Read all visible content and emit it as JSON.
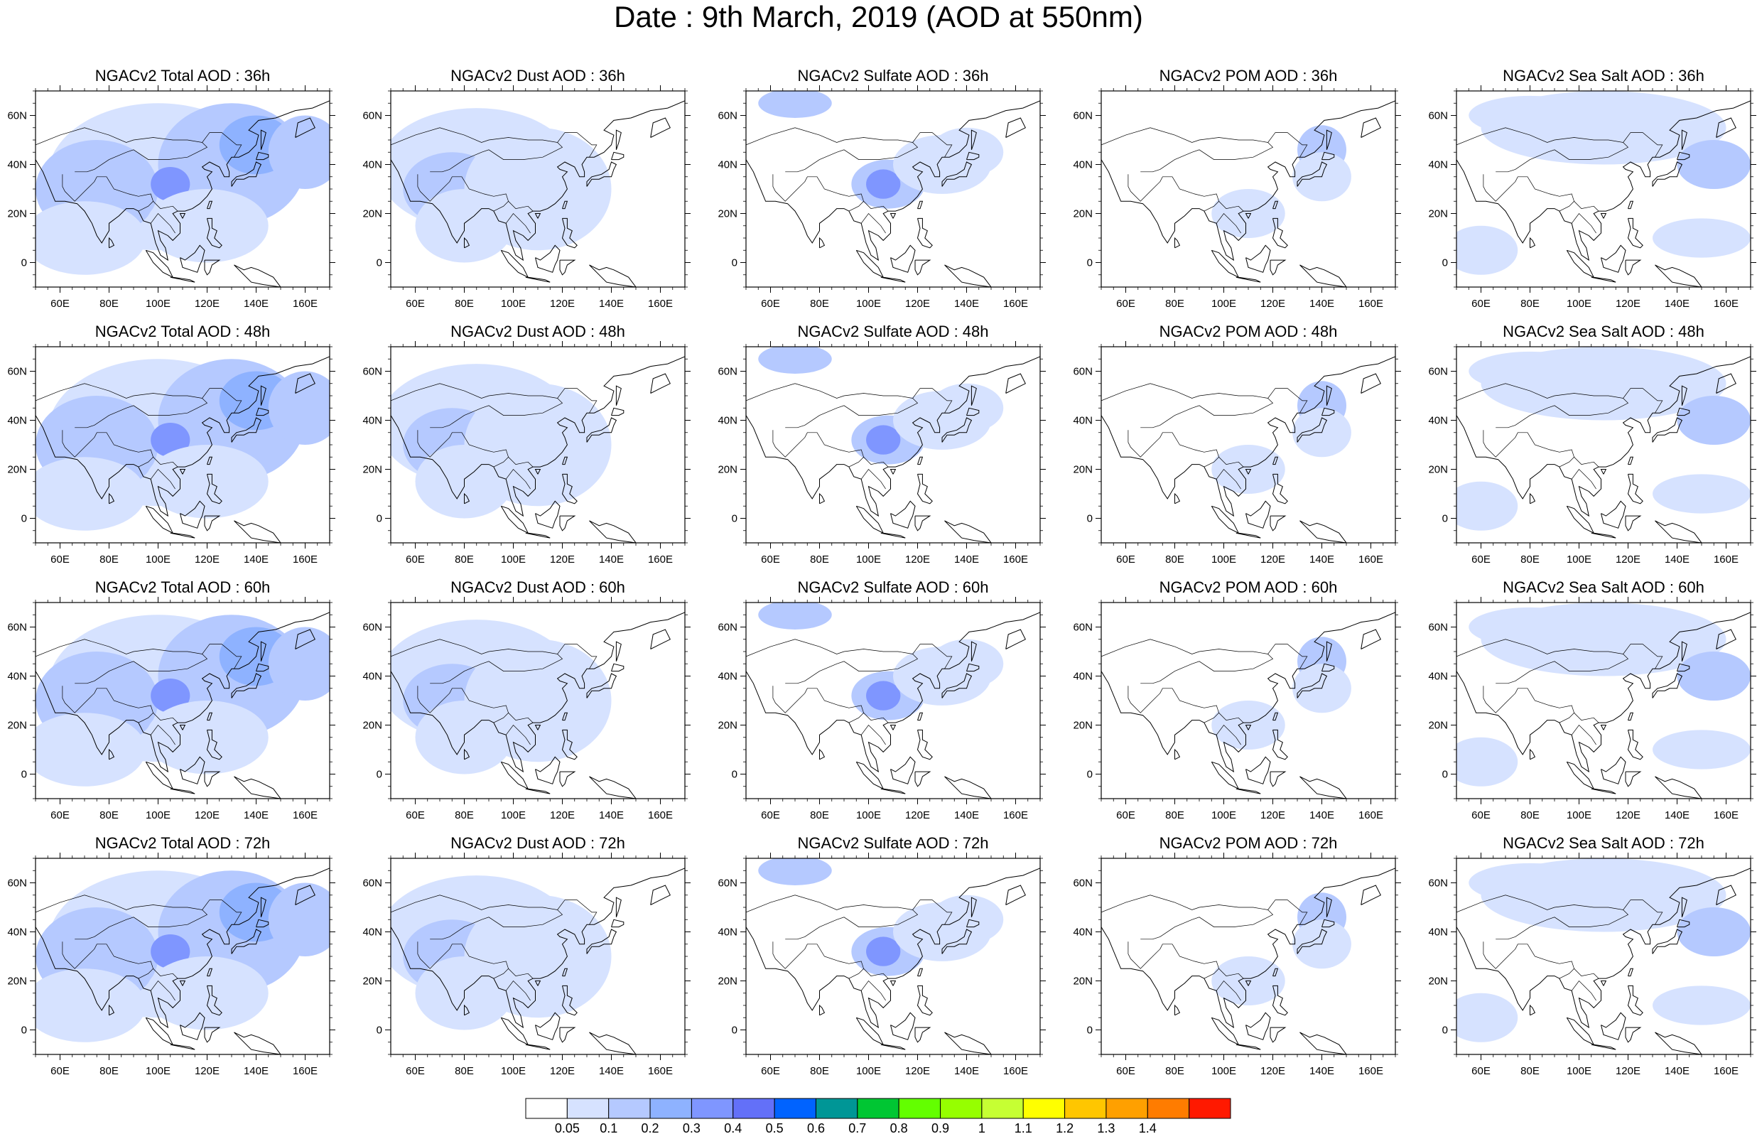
{
  "title": "Date : 9th March, 2019 (AOD at 550nm)",
  "lat_labels": [
    "60N",
    "40N",
    "20N",
    "0"
  ],
  "lon_labels": [
    "60E",
    "80E",
    "100E",
    "120E",
    "140E",
    "160E"
  ],
  "rows": [
    {
      "hour": "36h",
      "titles": [
        "NGACv2 Total AOD : 36h",
        "NGACv2 Dust AOD : 36h",
        "NGACv2 Sulfate AOD : 36h",
        "NGACv2 POM AOD : 36h",
        "NGACv2 Sea Salt AOD : 36h"
      ]
    },
    {
      "hour": "48h",
      "titles": [
        "NGACv2 Total AOD : 48h",
        "NGACv2 Dust AOD : 48h",
        "NGACv2 Sulfate AOD : 48h",
        "NGACv2 POM AOD : 48h",
        "NGACv2 Sea Salt AOD : 48h"
      ]
    },
    {
      "hour": "60h",
      "titles": [
        "NGACv2 Total AOD : 60h",
        "NGACv2 Dust AOD : 60h",
        "NGACv2 Sulfate AOD : 60h",
        "NGACv2 POM AOD : 60h",
        "NGACv2 Sea Salt AOD : 60h"
      ]
    },
    {
      "hour": "72h",
      "titles": [
        "NGACv2 Total AOD : 72h",
        "NGACv2 Dust AOD : 72h",
        "NGACv2 Sulfate AOD : 72h",
        "NGACv2 POM AOD : 72h",
        "NGACv2 Sea Salt  AOD : 72h"
      ]
    }
  ],
  "colorbar": {
    "labels": [
      "0.05",
      "0.1",
      "0.2",
      "0.3",
      "0.4",
      "0.5",
      "0.6",
      "0.7",
      "0.8",
      "0.9",
      "1",
      "1.1",
      "1.2",
      "1.3",
      "1.4"
    ],
    "colors": [
      "#ffffff",
      "#d6e2ff",
      "#b5c9ff",
      "#8eb2ff",
      "#7f96ff",
      "#6370f8",
      "#0063ff",
      "#009696",
      "#00c633",
      "#63ff00",
      "#96ff00",
      "#c6ff33",
      "#ffff00",
      "#ffc600",
      "#ffa000",
      "#ff7c00",
      "#ff1900"
    ]
  }
}
